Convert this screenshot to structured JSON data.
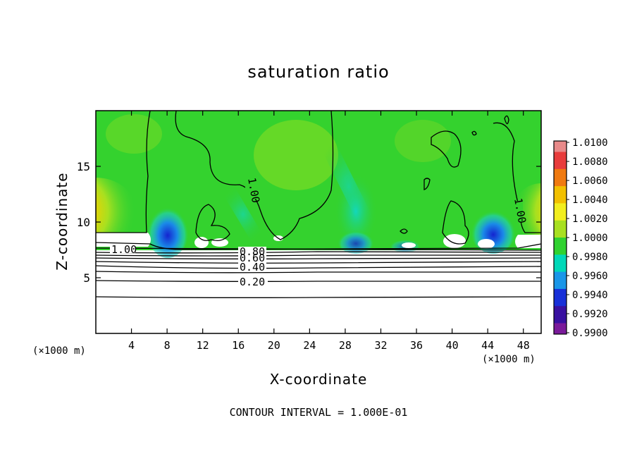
{
  "chart_data": {
    "type": "heatmap",
    "title": "saturation ratio",
    "xlabel": "X-coordinate",
    "ylabel": "Z-coordinate",
    "x_unit_label": "(×1000 m)",
    "xlim": [
      0,
      50
    ],
    "ylim": [
      0,
      20
    ],
    "x_ticks": [
      "4",
      "8",
      "12",
      "16",
      "20",
      "24",
      "28",
      "32",
      "36",
      "40",
      "44",
      "48"
    ],
    "y_ticks": [
      "5",
      "10",
      "15"
    ],
    "colorbar": {
      "ticks": [
        "1.0100",
        "1.0080",
        "1.0060",
        "1.0040",
        "1.0020",
        "1.0000",
        "0.9980",
        "0.9960",
        "0.9940",
        "0.9920",
        "0.9900"
      ],
      "colors": [
        "#e88a8a",
        "#e83c3c",
        "#f07a10",
        "#f2c000",
        "#f2ee1e",
        "#a8e020",
        "#30d230",
        "#00d8b8",
        "#1a96e8",
        "#1830d8",
        "#3810a0",
        "#7a1a9a"
      ]
    },
    "contour_labels": [
      "1.00",
      "1.00",
      "1.00",
      "0.80",
      "0.60",
      "0.40",
      "0.20"
    ],
    "contour_levels": [
      1.0,
      0.8,
      0.6,
      0.4,
      0.2
    ],
    "background_value": 1.0,
    "footnote": "CONTOUR INTERVAL = 1.000E-01"
  }
}
